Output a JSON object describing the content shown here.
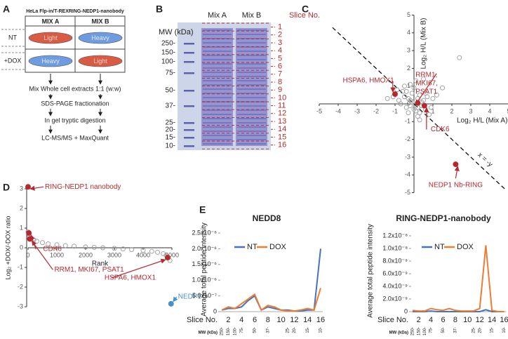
{
  "panels": {
    "A": {
      "letter": "A",
      "title": "HeLa Flp-in/T-REXRING-NEDP1-nanobody",
      "columns": [
        "MIX A",
        "MIX B"
      ],
      "rows": [
        {
          "label": "NT",
          "cells": [
            "Light",
            "Heavy"
          ]
        },
        {
          "label": "+DOX",
          "cells": [
            "Heavy",
            "Light"
          ]
        }
      ],
      "steps": [
        "Mix Whole cell extracts 1:1 (w:w)",
        "SDS-PAGE fractionation",
        "In gel tryptic digestion",
        "LC-MS/MS + MaxQuant"
      ]
    },
    "B": {
      "letter": "B",
      "lanes": [
        "Mix A",
        "Mix B"
      ],
      "mw_title": "MW (kDa)",
      "mw_markers": [
        "250-",
        "150-",
        "100-",
        "75-",
        "50-",
        "37-",
        "25-",
        "20-",
        "15-",
        "10-"
      ],
      "slice_title": "Slice No.",
      "slices": [
        1,
        2,
        3,
        4,
        5,
        6,
        7,
        8,
        9,
        10,
        11,
        12,
        13,
        14,
        15,
        16
      ]
    },
    "C": {
      "letter": "C"
    },
    "D": {
      "letter": "D"
    },
    "E": {
      "letter": "E"
    }
  },
  "chart_data": [
    {
      "type": "scatter",
      "xlabel": "Log₂ H/L (Mix A)",
      "ylabel": "Log₂ H/L (Mix B)",
      "xlim": [
        -5,
        5
      ],
      "ylim": [
        -5,
        5
      ],
      "xticks": [
        -5,
        -4,
        -3,
        -2,
        -1,
        1,
        2,
        3,
        4,
        5
      ],
      "yticks": [
        -5,
        -4,
        -3,
        -2,
        -1,
        0,
        1,
        2,
        3,
        4,
        5
      ],
      "annotations": [
        "x = -y"
      ],
      "series": [
        {
          "color": "#9a9a9a",
          "x": [
            -0.3,
            0.2,
            -0.1,
            0.4,
            -0.5,
            0.1,
            0.3,
            -0.2,
            0.6,
            -0.6,
            0.0,
            0.5,
            -0.4,
            0.2,
            -0.8,
            0.8,
            -0.2,
            0.3,
            -0.1,
            0.7,
            -0.9,
            1.0,
            -0.3,
            0.4,
            0.1,
            -0.7,
            0.9,
            -0.5,
            1.2,
            0.2,
            -1.1,
            0.6,
            -0.4,
            1.5,
            2.4,
            -1.4,
            0.3,
            0.0,
            -0.2,
            0.5
          ],
          "values": [
            0.3,
            -0.2,
            0.6,
            0.1,
            0.4,
            -0.4,
            0.5,
            -0.1,
            -0.3,
            0.7,
            0.9,
            0.2,
            -0.2,
            0.3,
            0.2,
            -0.6,
            1.1,
            -0.5,
            0.1,
            0.4,
            0.8,
            0.3,
            -0.5,
            -0.1,
            1.3,
            0.0,
            -0.2,
            1.0,
            0.5,
            -0.7,
            0.4,
            0.6,
            0.7,
            0.9,
            2.6,
            0.3,
            -0.9,
            -0.3,
            0.2,
            1.4
          ]
        },
        {
          "color": "#b5292e",
          "x": [
            -1.0,
            0.2,
            0.55,
            2.2
          ],
          "values": [
            0.55,
            0.05,
            -0.1,
            -3.4
          ],
          "point_labels": [
            "HSPA6, HMOX1",
            [
              "RRM1,",
              "MKI67,",
              "PSAT1"
            ],
            "CDK6",
            "NEDP1 Nb-RING"
          ]
        }
      ]
    },
    {
      "type": "scatter",
      "xlabel": "Rank",
      "ylabel": "Log₂ +DOX/-DOX ratio",
      "xlim": [
        0,
        5000
      ],
      "ylim": [
        -3,
        3
      ],
      "xticks": [
        0,
        1000,
        2000,
        3000,
        4000,
        5000
      ],
      "yticks": [
        -3,
        -2,
        -1,
        0,
        1,
        2,
        3
      ],
      "series": [
        {
          "color": "#9a9a9a",
          "x": [
            0,
            50,
            100,
            200,
            300,
            500,
            700,
            1000,
            1300,
            1600,
            2000,
            2300,
            2600,
            3000,
            3300,
            3600,
            4000,
            4300,
            4500,
            4700,
            4800,
            4880,
            4930
          ],
          "values": [
            0.8,
            0.6,
            0.5,
            0.4,
            0.33,
            0.26,
            0.2,
            0.15,
            0.11,
            0.08,
            0.04,
            0.02,
            0.0,
            -0.03,
            -0.06,
            -0.09,
            -0.13,
            -0.18,
            -0.23,
            -0.3,
            -0.38,
            -0.5,
            -0.65
          ]
        },
        {
          "color": "#b5292e",
          "x": [
            0,
            30,
            60,
            4850
          ],
          "values": [
            3.1,
            0.75,
            0.45,
            -0.5
          ],
          "point_labels": [
            "RING-NEDP1 nanobody",
            "CDK6",
            "RRM1, MKI67, PSAT1",
            "HSPA6, HMOX1"
          ]
        },
        {
          "color": "#4a90c8",
          "x": [
            4970
          ],
          "values": [
            -2.85
          ],
          "point_labels": [
            "NEDP1*"
          ]
        }
      ]
    },
    {
      "type": "line",
      "title": "NEDD8",
      "ylabel": "Average total peptide intensity",
      "xlabel": "Slice No.",
      "mw_title": "MW (kDa)",
      "categories": [
        null,
        "2",
        null,
        "4",
        null,
        "6",
        null,
        "8",
        null,
        "10",
        null,
        "12",
        null,
        "14",
        null,
        "16"
      ],
      "mw_labels": [
        "250-",
        "150-",
        "100-",
        "75-",
        null,
        "50-",
        null,
        "37-",
        null,
        null,
        "25-",
        "20-",
        null,
        "15-",
        null,
        "10-"
      ],
      "ylim": [
        0,
        2.5e-06
      ],
      "yticks": [
        0,
        {
          "value": 5e-07,
          "label": "5.0x10⁻⁷"
        },
        {
          "value": 1e-06,
          "label": "1.0x10⁻⁶"
        },
        {
          "value": 1.5e-06,
          "label": "1.5x10⁻⁶"
        },
        {
          "value": 2e-06,
          "label": "2.0x10⁻⁶"
        },
        {
          "value": 2.5e-06,
          "label": "2.5x10⁻⁶"
        }
      ],
      "series": [
        {
          "name": "NT",
          "color": "#4472c4",
          "values": [
            5e-08,
            1e-07,
            1e-07,
            1.5e-07,
            3.5e-07,
            5e-07,
            5e-08,
            1.5e-07,
            1e-07,
            5e-08,
            5e-08,
            2e-08,
            2e-08,
            5e-08,
            5e-08,
            2e-06
          ]
        },
        {
          "name": "DOX",
          "color": "#ed7d31",
          "values": [
            5e-08,
            1.5e-07,
            1e-07,
            2.5e-07,
            4e-07,
            5.5e-07,
            5e-08,
            2e-07,
            1.5e-07,
            5e-08,
            2e-08,
            2e-08,
            5e-08,
            1e-07,
            5e-08,
            7.5e-07
          ]
        }
      ]
    },
    {
      "type": "line",
      "title": "RING-NEDP1-nanobody",
      "ylabel": "Average total peptide intensity",
      "xlabel": "Slice No.",
      "mw_title": "MW (kDa)",
      "categories": [
        null,
        "2",
        null,
        "4",
        null,
        "6",
        null,
        "8",
        null,
        "10",
        null,
        "12",
        null,
        "14",
        null,
        "16"
      ],
      "mw_labels": [
        "250-",
        "150-",
        "100-",
        "75-",
        null,
        "50-",
        null,
        "37-",
        null,
        null,
        "25-",
        "20-",
        null,
        "15-",
        null,
        "10-"
      ],
      "ylim": [
        0,
        1.2e-08
      ],
      "yticks": [
        0,
        {
          "value": 2e-09,
          "label": "2.0x10⁻⁹"
        },
        {
          "value": 4e-09,
          "label": "4.0x10⁻⁹"
        },
        {
          "value": 6e-09,
          "label": "6.0x10⁻⁹"
        },
        {
          "value": 8e-09,
          "label": "8.0x10⁻⁹"
        },
        {
          "value": 1e-08,
          "label": "1.0x10⁻⁸"
        },
        {
          "value": 1.2e-08,
          "label": "1.2x10⁻⁸"
        }
      ],
      "series": [
        {
          "name": "NT",
          "color": "#4472c4",
          "values": [
            0,
            0,
            0,
            1e-10,
            0,
            0,
            0,
            0,
            0,
            0,
            0,
            0,
            3e-10,
            0,
            0,
            0
          ]
        },
        {
          "name": "DOX",
          "color": "#ed7d31",
          "values": [
            2e-10,
            1e-10,
            1e-10,
            5e-10,
            3e-10,
            2e-10,
            5e-10,
            2e-10,
            1e-10,
            1e-10,
            1e-10,
            5e-10,
            1.05e-08,
            2e-10,
            0,
            0
          ]
        }
      ]
    }
  ]
}
